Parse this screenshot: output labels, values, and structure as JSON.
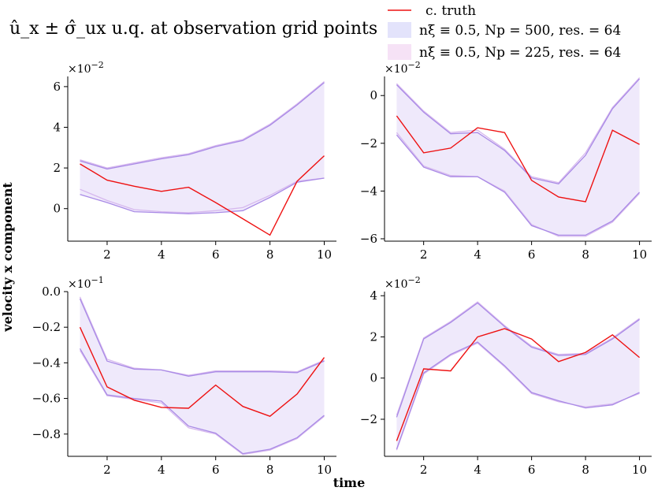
{
  "figure": {
    "title": "û_x ± σ̂_ux u.q. at observation grid points",
    "ylabel": "velocity x component",
    "xlabel": "time"
  },
  "legend": {
    "placement": "top-right",
    "entries": [
      {
        "label": "c. truth",
        "kind": "line",
        "color": "#ee1111"
      },
      {
        "label": "nξ ≡ 0.5, Np = 500, res. = 64",
        "kind": "patch",
        "color": "#e3e3fb"
      },
      {
        "label": "nξ ≡ 0.5, Np = 225, res. = 64",
        "kind": "patch",
        "color": "#f6e2f6"
      }
    ]
  },
  "colors": {
    "truth": "#ee1111",
    "band_edge_500": "#a98ae6",
    "band_edge_225": "#d6b8ee",
    "band_fill": "#efe9fb"
  },
  "chart_data": [
    {
      "type": "line",
      "multiplier": "×10^-2",
      "x": [
        1,
        2,
        3,
        4,
        5,
        6,
        7,
        8,
        9,
        10
      ],
      "xlim": [
        0.55,
        10.45
      ],
      "ylim": [
        -1.6,
        6.5
      ],
      "xticks": [
        2,
        4,
        6,
        8,
        10
      ],
      "yticks": [
        0,
        2,
        4,
        6
      ],
      "ytick_labels": [
        "0",
        "2",
        "4",
        "6"
      ],
      "truth": [
        2.2,
        1.4,
        1.1,
        0.85,
        1.05,
        0.3,
        -0.5,
        -1.3,
        1.35,
        2.6
      ],
      "upper_500": [
        2.35,
        1.95,
        2.2,
        2.45,
        2.65,
        3.05,
        3.35,
        4.1,
        5.1,
        6.2
      ],
      "lower_500": [
        0.7,
        0.3,
        -0.15,
        -0.2,
        -0.25,
        -0.2,
        -0.1,
        0.55,
        1.3,
        1.5
      ],
      "upper_225": [
        2.4,
        2.0,
        2.25,
        2.5,
        2.7,
        3.1,
        3.4,
        4.15,
        5.15,
        6.25
      ],
      "lower_225": [
        0.95,
        0.4,
        -0.05,
        -0.15,
        -0.2,
        -0.1,
        0.05,
        0.65,
        1.35,
        1.5
      ]
    },
    {
      "type": "line",
      "multiplier": "×10^-2",
      "x": [
        1,
        2,
        3,
        4,
        5,
        6,
        7,
        8,
        9,
        10
      ],
      "xlim": [
        0.55,
        10.45
      ],
      "ylim": [
        -6.1,
        0.8
      ],
      "xticks": [
        2,
        4,
        6,
        8,
        10
      ],
      "yticks": [
        -6,
        -4,
        -2,
        0
      ],
      "ytick_labels": [
        "−6",
        "−4",
        "−2",
        "0"
      ],
      "truth": [
        -0.85,
        -2.4,
        -2.2,
        -1.35,
        -1.55,
        -3.55,
        -4.25,
        -4.45,
        -1.45,
        -2.05
      ],
      "upper_500": [
        0.45,
        -0.7,
        -1.6,
        -1.55,
        -2.3,
        -3.45,
        -3.7,
        -2.5,
        -0.55,
        0.7
      ],
      "lower_500": [
        -1.65,
        -3.0,
        -3.4,
        -3.4,
        -4.05,
        -5.45,
        -5.85,
        -5.85,
        -5.25,
        -4.05
      ],
      "upper_225": [
        0.5,
        -0.65,
        -1.55,
        -1.45,
        -2.25,
        -3.4,
        -3.65,
        -2.4,
        -0.5,
        0.75
      ],
      "lower_225": [
        -1.55,
        -2.95,
        -3.35,
        -3.4,
        -4.0,
        -5.4,
        -5.9,
        -5.9,
        -5.3,
        -4.1
      ]
    },
    {
      "type": "line",
      "multiplier": "×10^-1",
      "x": [
        1,
        2,
        3,
        4,
        5,
        6,
        7,
        8,
        9,
        10
      ],
      "xlim": [
        0.55,
        10.45
      ],
      "ylim": [
        -0.925,
        0.0
      ],
      "xticks": [
        2,
        4,
        6,
        8,
        10
      ],
      "yticks": [
        -0.8,
        -0.6,
        -0.4,
        -0.2,
        0.0
      ],
      "ytick_labels": [
        "−0.8",
        "−0.6",
        "−0.4",
        "−0.2",
        "0.0"
      ],
      "truth": [
        -0.2,
        -0.535,
        -0.61,
        -0.65,
        -0.655,
        -0.525,
        -0.645,
        -0.7,
        -0.575,
        -0.37
      ],
      "upper_500": [
        -0.04,
        -0.39,
        -0.435,
        -0.44,
        -0.475,
        -0.45,
        -0.45,
        -0.45,
        -0.455,
        -0.39
      ],
      "lower_500": [
        -0.32,
        -0.58,
        -0.6,
        -0.615,
        -0.755,
        -0.795,
        -0.91,
        -0.885,
        -0.82,
        -0.695
      ],
      "upper_225": [
        -0.03,
        -0.38,
        -0.43,
        -0.44,
        -0.47,
        -0.445,
        -0.445,
        -0.445,
        -0.45,
        -0.385
      ],
      "lower_225": [
        -0.33,
        -0.585,
        -0.605,
        -0.625,
        -0.765,
        -0.8,
        -0.915,
        -0.89,
        -0.825,
        -0.7
      ]
    },
    {
      "type": "line",
      "multiplier": "×10^-2",
      "x": [
        1,
        2,
        3,
        4,
        5,
        6,
        7,
        8,
        9,
        10
      ],
      "xlim": [
        0.55,
        10.45
      ],
      "ylim": [
        -3.8,
        4.2
      ],
      "xticks": [
        2,
        4,
        6,
        8,
        10
      ],
      "yticks": [
        -2,
        0,
        2,
        4
      ],
      "ytick_labels": [
        "−2",
        "0",
        "2",
        "4"
      ],
      "truth": [
        -3.05,
        0.45,
        0.35,
        2.0,
        2.4,
        1.9,
        0.8,
        1.25,
        2.1,
        1.0
      ],
      "upper_500": [
        -1.9,
        1.9,
        2.7,
        3.65,
        2.5,
        1.5,
        1.1,
        1.15,
        1.9,
        2.85
      ],
      "lower_500": [
        -3.45,
        0.25,
        1.15,
        1.75,
        0.6,
        -0.7,
        -1.1,
        -1.45,
        -1.3,
        -0.7
      ],
      "upper_225": [
        -1.8,
        1.95,
        2.75,
        3.7,
        2.55,
        1.55,
        1.15,
        1.2,
        1.95,
        2.9
      ],
      "lower_225": [
        -3.5,
        0.2,
        1.1,
        1.7,
        0.55,
        -0.75,
        -1.15,
        -1.4,
        -1.25,
        -0.75
      ]
    }
  ]
}
